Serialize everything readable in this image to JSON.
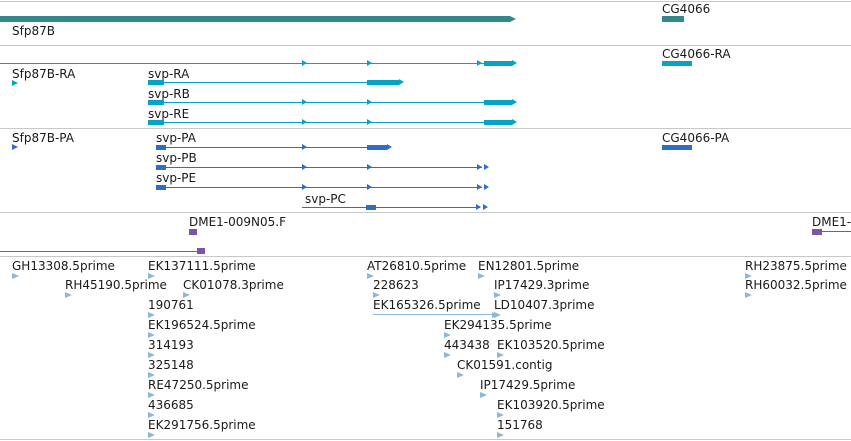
{
  "viewer": {
    "colors": {
      "gene": "#33898a",
      "mrna": "#05a3c6",
      "cds": "#2f6ccc",
      "probe": "#7a55a8",
      "est": "#8ab8d8",
      "separator": "#c8c8c8"
    },
    "tracks": {
      "genes": {
        "features": [
          {
            "id": "gene-sfp87b",
            "label": "Sfp87B",
            "strand": "+"
          },
          {
            "id": "gene-cg4066",
            "label": "CG4066",
            "strand": "+"
          }
        ]
      },
      "transcripts": {
        "features": [
          {
            "id": "tx-sfp87b-ra",
            "label": "Sfp87B-RA"
          },
          {
            "id": "tx-svp-ra",
            "label": "svp-RA"
          },
          {
            "id": "tx-svp-rb",
            "label": "svp-RB"
          },
          {
            "id": "tx-svp-re",
            "label": "svp-RE"
          },
          {
            "id": "tx-cg4066-ra",
            "label": "CG4066-RA"
          }
        ]
      },
      "proteins": {
        "features": [
          {
            "id": "cds-sfp87b-pa",
            "label": "Sfp87B-PA"
          },
          {
            "id": "cds-svp-pa",
            "label": "svp-PA"
          },
          {
            "id": "cds-svp-pb",
            "label": "svp-PB"
          },
          {
            "id": "cds-svp-pe",
            "label": "svp-PE"
          },
          {
            "id": "cds-svp-pc",
            "label": "svp-PC"
          },
          {
            "id": "cds-cg4066-pa",
            "label": "CG4066-PA"
          }
        ]
      },
      "probes": {
        "features": [
          {
            "id": "probe-dme1-009n05",
            "label": "DME1-009N05.F"
          },
          {
            "id": "probe-dme1-right",
            "label": "DME1-"
          }
        ]
      },
      "ests": {
        "features": [
          {
            "label": "GH13308.5prime"
          },
          {
            "label": "RH45190.5prime"
          },
          {
            "label": "EK137111.5prime"
          },
          {
            "label": "CK01078.3prime"
          },
          {
            "label": "190761"
          },
          {
            "label": "EK196524.5prime"
          },
          {
            "label": "314193"
          },
          {
            "label": "325148"
          },
          {
            "label": "RE47250.5prime"
          },
          {
            "label": "436685"
          },
          {
            "label": "EK291756.5prime"
          },
          {
            "label": "AT26810.5prime"
          },
          {
            "label": "228623"
          },
          {
            "label": "EK165326.5prime"
          },
          {
            "label": "EN12801.5prime"
          },
          {
            "label": "IP17429.3prime"
          },
          {
            "label": "LD10407.3prime"
          },
          {
            "label": "EK294135.5prime"
          },
          {
            "label": "443438"
          },
          {
            "label": "EK103520.5prime"
          },
          {
            "label": "CK01591.contig"
          },
          {
            "label": "IP17429.5prime"
          },
          {
            "label": "EK103920.5prime"
          },
          {
            "label": "151768"
          },
          {
            "label": "RH23875.5prime"
          },
          {
            "label": "RH60032.5prime"
          }
        ]
      }
    }
  }
}
